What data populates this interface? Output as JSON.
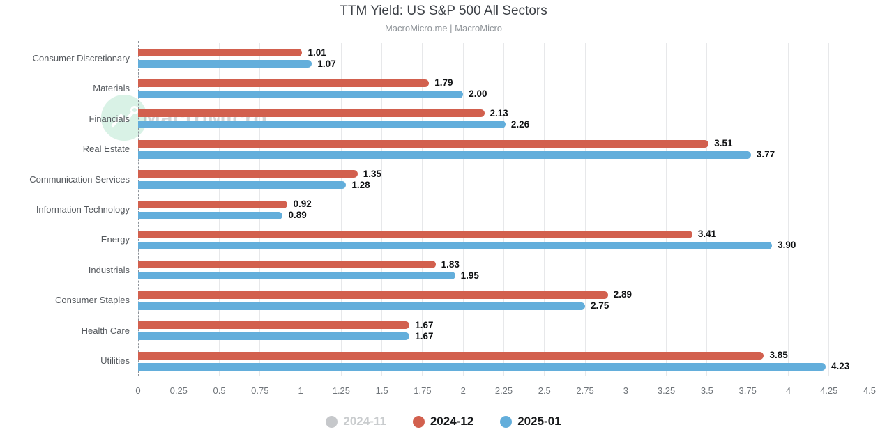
{
  "title": "TTM Yield: US S&P 500 All Sectors",
  "subtitle": "MacroMicro.me | MacroMicro",
  "watermark": {
    "text": "MacroMicro",
    "badge_icon": "line-chart-logo",
    "badge_color": "#d9f2e6"
  },
  "colors": {
    "series_red": "#d2604e",
    "series_blue": "#63aedb",
    "disabled_gray": "#c6c8cb",
    "gridline": "#e7e8ea",
    "value_label": "#101214"
  },
  "legend": {
    "items": [
      {
        "label": "2024-11",
        "color": "#c6c8cb",
        "active": false
      },
      {
        "label": "2024-12",
        "color": "#d2604e",
        "active": true
      },
      {
        "label": "2025-01",
        "color": "#63aedb",
        "active": true
      }
    ]
  },
  "chart_data": {
    "type": "bar",
    "orientation": "horizontal",
    "title": "TTM Yield: US S&P 500 All Sectors",
    "subtitle": "MacroMicro.me | MacroMicro",
    "categories": [
      "Consumer Discretionary",
      "Materials",
      "Financials",
      "Real Estate",
      "Communication Services",
      "Information Technology",
      "Energy",
      "Industrials",
      "Consumer Staples",
      "Health Care",
      "Utilities"
    ],
    "series": [
      {
        "name": "2024-12",
        "color": "#d2604e",
        "values": [
          1.01,
          1.79,
          2.13,
          3.51,
          1.35,
          0.92,
          3.41,
          1.83,
          2.89,
          1.67,
          3.85
        ]
      },
      {
        "name": "2025-01",
        "color": "#63aedb",
        "values": [
          1.07,
          2.0,
          2.26,
          3.77,
          1.28,
          0.89,
          3.9,
          1.95,
          2.75,
          1.67,
          4.23
        ]
      }
    ],
    "hidden_series": [
      "2024-11"
    ],
    "xlim": [
      0,
      4.5
    ],
    "x_ticks": [
      {
        "value": 0,
        "label": "0"
      },
      {
        "value": 0.25,
        "label": "0.25"
      },
      {
        "value": 0.5,
        "label": "0.5"
      },
      {
        "value": 0.75,
        "label": "0.75"
      },
      {
        "value": 1,
        "label": "1"
      },
      {
        "value": 1.25,
        "label": "1.25"
      },
      {
        "value": 1.5,
        "label": "1.5"
      },
      {
        "value": 1.75,
        "label": "1.75"
      },
      {
        "value": 2,
        "label": "2"
      },
      {
        "value": 2.25,
        "label": "2.25"
      },
      {
        "value": 2.5,
        "label": "2.5"
      },
      {
        "value": 2.75,
        "label": "2.75"
      },
      {
        "value": 3,
        "label": "3"
      },
      {
        "value": 3.25,
        "label": "3.25"
      },
      {
        "value": 3.5,
        "label": "3.5"
      },
      {
        "value": 3.75,
        "label": "3.75"
      },
      {
        "value": 4,
        "label": "4"
      },
      {
        "value": 4.25,
        "label": "4.25"
      },
      {
        "value": 4.5,
        "label": "4.5"
      }
    ],
    "value_decimals": 2,
    "grid": "vertical",
    "legend_position": "bottom"
  }
}
